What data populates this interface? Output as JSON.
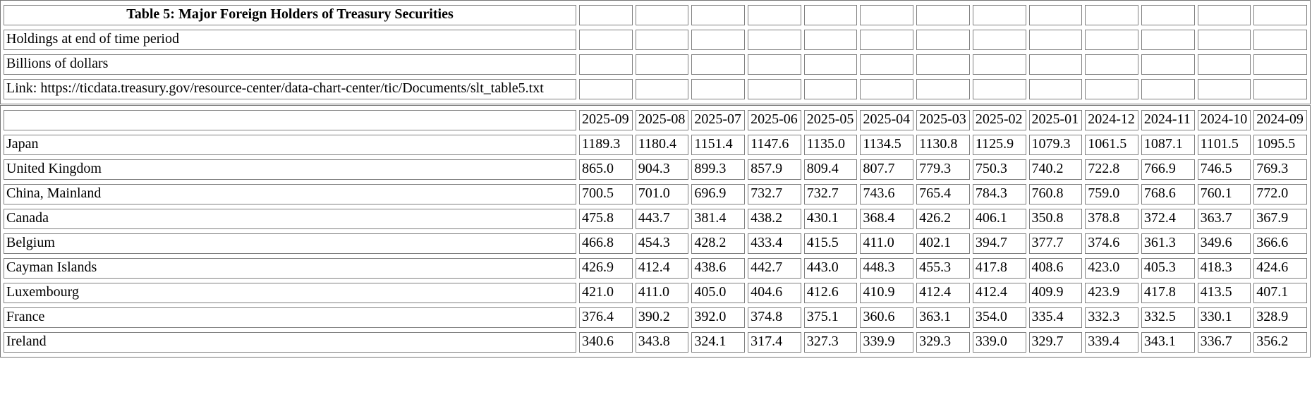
{
  "page": {
    "background_color": "#ffffff",
    "border_frame_color": "#767676",
    "cell_border_color": "#808080",
    "text_color": "#000000"
  },
  "meta": {
    "title": "Table 5: Major Foreign Holders of Treasury Securities",
    "holdings_note": "Holdings at end of time period",
    "units_note": "Billions of dollars",
    "link": "Link: https://ticdata.treasury.gov/resource-center/data-chart-center/tic/Documents/slt_table5.txt"
  },
  "chart_data": {
    "type": "table",
    "title": "Table 5: Major Foreign Holders of Treasury Securities",
    "subtitle": "Holdings at end of time period",
    "units": "Billions of dollars",
    "columns": [
      "2025-09",
      "2025-08",
      "2025-07",
      "2025-06",
      "2025-05",
      "2025-04",
      "2025-03",
      "2025-02",
      "2025-01",
      "2024-12",
      "2024-11",
      "2024-10",
      "2024-09"
    ],
    "rows": [
      {
        "label": "Japan",
        "values": [
          "1189.3",
          "1180.4",
          "1151.4",
          "1147.6",
          "1135.0",
          "1134.5",
          "1130.8",
          "1125.9",
          "1079.3",
          "1061.5",
          "1087.1",
          "1101.5",
          "1095.5"
        ]
      },
      {
        "label": "United Kingdom",
        "values": [
          "865.0",
          "904.3",
          "899.3",
          "857.9",
          "809.4",
          "807.7",
          "779.3",
          "750.3",
          "740.2",
          "722.8",
          "766.9",
          "746.5",
          "769.3"
        ]
      },
      {
        "label": "China, Mainland",
        "values": [
          "700.5",
          "701.0",
          "696.9",
          "732.7",
          "732.7",
          "743.6",
          "765.4",
          "784.3",
          "760.8",
          "759.0",
          "768.6",
          "760.1",
          "772.0"
        ]
      },
      {
        "label": "Canada",
        "values": [
          "475.8",
          "443.7",
          "381.4",
          "438.2",
          "430.1",
          "368.4",
          "426.2",
          "406.1",
          "350.8",
          "378.8",
          "372.4",
          "363.7",
          "367.9"
        ]
      },
      {
        "label": "Belgium",
        "values": [
          "466.8",
          "454.3",
          "428.2",
          "433.4",
          "415.5",
          "411.0",
          "402.1",
          "394.7",
          "377.7",
          "374.6",
          "361.3",
          "349.6",
          "366.6"
        ]
      },
      {
        "label": "Cayman Islands",
        "values": [
          "426.9",
          "412.4",
          "438.6",
          "442.7",
          "443.0",
          "448.3",
          "455.3",
          "417.8",
          "408.6",
          "423.0",
          "405.3",
          "418.3",
          "424.6"
        ]
      },
      {
        "label": "Luxembourg",
        "values": [
          "421.0",
          "411.0",
          "405.0",
          "404.6",
          "412.6",
          "410.9",
          "412.4",
          "412.4",
          "409.9",
          "423.9",
          "417.8",
          "413.5",
          "407.1"
        ]
      },
      {
        "label": "France",
        "values": [
          "376.4",
          "390.2",
          "392.0",
          "374.8",
          "375.1",
          "360.6",
          "363.1",
          "354.0",
          "335.4",
          "332.3",
          "332.5",
          "330.1",
          "328.9"
        ]
      },
      {
        "label": "Ireland",
        "values": [
          "340.6",
          "343.8",
          "324.1",
          "317.4",
          "327.3",
          "339.9",
          "329.3",
          "339.0",
          "329.7",
          "339.4",
          "343.1",
          "336.7",
          "356.2"
        ]
      }
    ]
  }
}
